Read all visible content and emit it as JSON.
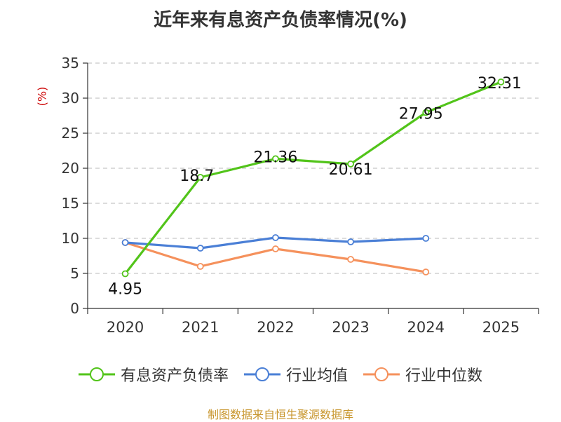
{
  "chart_data": {
    "type": "line",
    "title": "近年来有息资产负债率情况(%)",
    "ylabel": "(%)",
    "categories": [
      "2020",
      "2021",
      "2022",
      "2023",
      "2024",
      "2025"
    ],
    "ylim": [
      0,
      35
    ],
    "yticks": [
      0,
      5,
      10,
      15,
      20,
      25,
      30,
      35
    ],
    "grid": true,
    "legend_position": "bottom",
    "series": [
      {
        "name": "有息资产负债率",
        "color": "#52c41a",
        "values": [
          4.95,
          18.7,
          21.36,
          20.61,
          27.95,
          32.31
        ],
        "labels": [
          "4.95",
          "18.7",
          "21.36",
          "20.61",
          "27.95",
          "32.31"
        ]
      },
      {
        "name": "行业均值",
        "color": "#4a7fd6",
        "values": [
          9.4,
          8.6,
          10.1,
          9.5,
          10.0,
          null
        ]
      },
      {
        "name": "行业中位数",
        "color": "#f5915c",
        "values": [
          9.4,
          6.0,
          8.5,
          7.0,
          5.2,
          null
        ]
      }
    ],
    "source": "制图数据来自恒生聚源数据库"
  }
}
